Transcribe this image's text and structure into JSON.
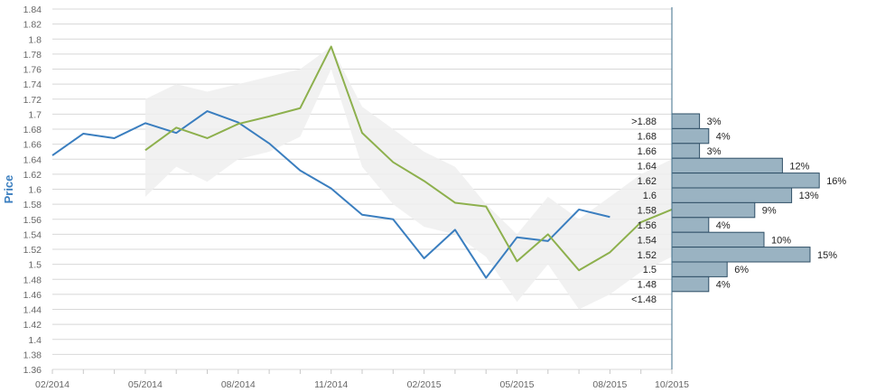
{
  "chart_data": {
    "type": "line",
    "ylabel": "Price",
    "ylim": [
      1.36,
      1.84
    ],
    "yticks": [
      "1.36",
      "1.38",
      "1.4",
      "1.42",
      "1.44",
      "1.46",
      "1.48",
      "1.5",
      "1.52",
      "1.54",
      "1.56",
      "1.58",
      "1.6",
      "1.62",
      "1.64",
      "1.66",
      "1.68",
      "1.7",
      "1.72",
      "1.74",
      "1.76",
      "1.78",
      "1.8",
      "1.82",
      "1.84"
    ],
    "xlim": [
      "2014-02",
      "2015-10"
    ],
    "xticks": [
      "02/2014",
      "05/2014",
      "08/2014",
      "11/2014",
      "02/2015",
      "05/2015",
      "08/2015",
      "10/2015"
    ],
    "grid": true,
    "series": [
      {
        "color": "#3a7ebf",
        "x": [
          "2014-02",
          "2014-03",
          "2014-04",
          "2014-05",
          "2014-06",
          "2014-07",
          "2014-08",
          "2014-09",
          "2014-10",
          "2014-11",
          "2014-12",
          "2015-01",
          "2015-02",
          "2015-03",
          "2015-04",
          "2015-05",
          "2015-06",
          "2015-07",
          "2015-08"
        ],
        "y": [
          1.645,
          1.674,
          1.668,
          1.688,
          1.675,
          1.704,
          1.689,
          1.661,
          1.625,
          1.601,
          1.566,
          1.56,
          1.508,
          1.546,
          1.482,
          1.536,
          1.531,
          1.573,
          1.563
        ]
      },
      {
        "color": "#8db04d",
        "x": [
          "2014-05",
          "2014-06",
          "2014-07",
          "2014-08",
          "2014-09",
          "2014-10",
          "2014-11",
          "2014-12",
          "2015-01",
          "2015-02",
          "2015-03",
          "2015-04",
          "2015-05",
          "2015-06",
          "2015-07",
          "2015-08",
          "2015-09",
          "2015-10"
        ],
        "y": [
          1.652,
          1.682,
          1.668,
          1.687,
          1.697,
          1.708,
          1.79,
          1.675,
          1.636,
          1.611,
          1.582,
          1.577,
          1.504,
          1.54,
          1.492,
          1.516,
          1.556,
          1.573
        ]
      }
    ],
    "band": {
      "color": "#eeeeee",
      "x": [
        "2014-05",
        "2014-06",
        "2014-07",
        "2014-08",
        "2014-09",
        "2014-10",
        "2014-11",
        "2014-12",
        "2015-01",
        "2015-02",
        "2015-03",
        "2015-04",
        "2015-05",
        "2015-06",
        "2015-07",
        "2015-08",
        "2015-09",
        "2015-10"
      ],
      "upper": [
        1.72,
        1.74,
        1.73,
        1.74,
        1.75,
        1.76,
        1.79,
        1.71,
        1.68,
        1.65,
        1.63,
        1.58,
        1.54,
        1.59,
        1.56,
        1.59,
        1.62,
        1.64
      ],
      "lower": [
        1.59,
        1.63,
        1.61,
        1.64,
        1.65,
        1.67,
        1.76,
        1.63,
        1.58,
        1.55,
        1.54,
        1.51,
        1.45,
        1.5,
        1.44,
        1.46,
        1.49,
        1.51
      ]
    },
    "histogram": {
      "color": "#9ab3c2",
      "edge_color": "#2f4f66",
      "bins": [
        {
          "label": ">1.88",
          "percent": 3
        },
        {
          "label": "1.68",
          "percent": 4
        },
        {
          "label": "1.66",
          "percent": 3
        },
        {
          "label": "1.64",
          "percent": 12
        },
        {
          "label": "1.62",
          "percent": 16
        },
        {
          "label": "1.6",
          "percent": 13
        },
        {
          "label": "1.58",
          "percent": 9
        },
        {
          "label": "1.56",
          "percent": 4
        },
        {
          "label": "1.54",
          "percent": 10
        },
        {
          "label": "1.52",
          "percent": 15
        },
        {
          "label": "1.5",
          "percent": 6
        },
        {
          "label": "1.48",
          "percent": 4
        },
        {
          "label": "<1.48",
          "percent": null
        }
      ]
    }
  }
}
